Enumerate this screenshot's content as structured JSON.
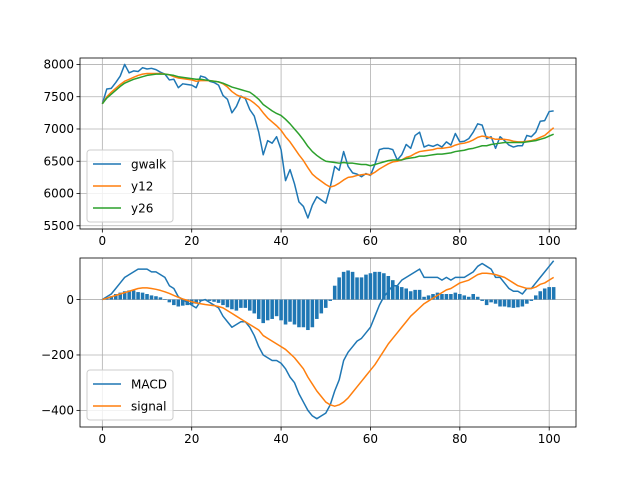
{
  "colors": {
    "blue": "#1f77b4",
    "orange": "#ff7f0e",
    "green": "#2ca02c",
    "grid": "#b0b0b0"
  },
  "chart_data": [
    {
      "type": "line",
      "title": "",
      "xlabel": "",
      "ylabel": "",
      "xlim": [
        -5,
        106
      ],
      "ylim": [
        5450,
        8100
      ],
      "xticks": [
        0,
        20,
        40,
        60,
        80,
        100
      ],
      "yticks": [
        5500,
        6000,
        6500,
        7000,
        7500,
        8000
      ],
      "grid": true,
      "legend_position": "lower-left",
      "x_start": 0,
      "series": [
        {
          "name": "gwalk",
          "color": "#1f77b4",
          "values": [
            7390,
            7620,
            7630,
            7720,
            7820,
            8000,
            7870,
            7900,
            7890,
            7950,
            7930,
            7940,
            7920,
            7880,
            7850,
            7760,
            7770,
            7640,
            7700,
            7690,
            7680,
            7640,
            7820,
            7800,
            7740,
            7720,
            7680,
            7520,
            7460,
            7250,
            7350,
            7510,
            7470,
            7300,
            7200,
            6950,
            6600,
            6820,
            6780,
            6880,
            6680,
            6200,
            6370,
            6150,
            5870,
            5800,
            5620,
            5820,
            5950,
            5900,
            5850,
            6100,
            6420,
            6360,
            6650,
            6420,
            6320,
            6300,
            6260,
            6310,
            6280,
            6450,
            6680,
            6700,
            6700,
            6680,
            6520,
            6600,
            6760,
            6700,
            6900,
            6950,
            6720,
            6750,
            6730,
            6760,
            6720,
            6800,
            6750,
            6930,
            6800,
            6810,
            6850,
            6950,
            7080,
            7060,
            6850,
            6880,
            6700,
            6880,
            6820,
            6750,
            6720,
            6740,
            6740,
            6900,
            6880,
            6950,
            7120,
            7130,
            7270,
            7280
          ]
        },
        {
          "name": "y12",
          "color": "#ff7f0e",
          "values": [
            7390,
            7500,
            7570,
            7630,
            7690,
            7740,
            7770,
            7800,
            7830,
            7850,
            7860,
            7860,
            7860,
            7860,
            7850,
            7840,
            7810,
            7790,
            7780,
            7770,
            7760,
            7740,
            7750,
            7750,
            7750,
            7740,
            7730,
            7700,
            7650,
            7580,
            7530,
            7500,
            7480,
            7450,
            7400,
            7340,
            7250,
            7170,
            7110,
            7050,
            6980,
            6880,
            6800,
            6700,
            6600,
            6510,
            6400,
            6300,
            6240,
            6190,
            6140,
            6100,
            6120,
            6160,
            6210,
            6250,
            6260,
            6280,
            6290,
            6300,
            6290,
            6330,
            6380,
            6420,
            6460,
            6490,
            6500,
            6520,
            6560,
            6580,
            6620,
            6650,
            6660,
            6670,
            6680,
            6700,
            6700,
            6710,
            6720,
            6750,
            6770,
            6780,
            6800,
            6830,
            6870,
            6890,
            6880,
            6860,
            6840,
            6840,
            6840,
            6830,
            6810,
            6800,
            6800,
            6810,
            6820,
            6840,
            6870,
            6900,
            6960,
            7020
          ]
        },
        {
          "name": "y26",
          "color": "#2ca02c",
          "values": [
            7390,
            7480,
            7540,
            7600,
            7660,
            7710,
            7740,
            7770,
            7790,
            7810,
            7830,
            7840,
            7850,
            7850,
            7850,
            7840,
            7830,
            7810,
            7800,
            7790,
            7780,
            7770,
            7770,
            7760,
            7750,
            7740,
            7730,
            7710,
            7680,
            7650,
            7630,
            7610,
            7590,
            7570,
            7520,
            7460,
            7380,
            7330,
            7280,
            7240,
            7210,
            7150,
            7080,
            7000,
            6920,
            6830,
            6730,
            6650,
            6590,
            6540,
            6500,
            6490,
            6480,
            6470,
            6480,
            6470,
            6470,
            6460,
            6450,
            6450,
            6430,
            6450,
            6470,
            6490,
            6510,
            6520,
            6520,
            6520,
            6540,
            6550,
            6560,
            6580,
            6580,
            6590,
            6600,
            6610,
            6610,
            6620,
            6630,
            6650,
            6660,
            6670,
            6690,
            6700,
            6720,
            6740,
            6740,
            6760,
            6770,
            6780,
            6790,
            6790,
            6790,
            6790,
            6790,
            6800,
            6810,
            6820,
            6840,
            6860,
            6890,
            6920
          ]
        }
      ]
    },
    {
      "type": "line+bar",
      "title": "",
      "xlabel": "",
      "ylabel": "",
      "xlim": [
        -5,
        106
      ],
      "ylim": [
        -460,
        150
      ],
      "xticks": [
        0,
        20,
        40,
        60,
        80,
        100
      ],
      "yticks": [
        -400,
        -200,
        0
      ],
      "grid": true,
      "legend_position": "lower-left",
      "x_start": 0,
      "bars": {
        "color": "#1f77b4",
        "values": [
          0,
          5,
          12,
          20,
          25,
          30,
          33,
          33,
          27,
          25,
          20,
          15,
          12,
          8,
          2,
          -10,
          -20,
          -25,
          -22,
          -20,
          -18,
          -15,
          -5,
          -3,
          -5,
          -8,
          -12,
          -20,
          -28,
          -35,
          -40,
          -30,
          -30,
          -40,
          -50,
          -70,
          -85,
          -75,
          -70,
          -60,
          -75,
          -90,
          -80,
          -90,
          -100,
          -100,
          -110,
          -100,
          -70,
          -50,
          -30,
          -5,
          50,
          80,
          100,
          105,
          100,
          80,
          80,
          90,
          95,
          100,
          100,
          95,
          85,
          70,
          50,
          45,
          40,
          30,
          35,
          35,
          10,
          15,
          20,
          25,
          20,
          20,
          20,
          25,
          20,
          15,
          10,
          20,
          10,
          -5,
          -20,
          -10,
          -15,
          -25,
          -25,
          -28,
          -30,
          -28,
          -25,
          -15,
          -5,
          15,
          30,
          40,
          45,
          45
        ]
      },
      "series": [
        {
          "name": "MACD",
          "color": "#1f77b4",
          "values": [
            0,
            10,
            20,
            40,
            60,
            80,
            90,
            100,
            110,
            110,
            110,
            100,
            100,
            90,
            80,
            50,
            40,
            10,
            0,
            -10,
            -20,
            -30,
            -5,
            0,
            -10,
            -20,
            -30,
            -60,
            -80,
            -100,
            -90,
            -80,
            -80,
            -100,
            -130,
            -170,
            -200,
            -210,
            -220,
            -220,
            -230,
            -250,
            -280,
            -300,
            -340,
            -370,
            -400,
            -420,
            -430,
            -420,
            -410,
            -380,
            -330,
            -290,
            -220,
            -190,
            -170,
            -150,
            -140,
            -120,
            -100,
            -60,
            -20,
            10,
            30,
            50,
            50,
            70,
            80,
            90,
            100,
            110,
            80,
            80,
            80,
            80,
            70,
            80,
            70,
            80,
            80,
            80,
            90,
            100,
            120,
            130,
            120,
            110,
            80,
            80,
            60,
            40,
            30,
            30,
            20,
            40,
            40,
            60,
            80,
            100,
            120,
            140
          ]
        },
        {
          "name": "signal",
          "color": "#ff7f0e",
          "values": [
            0,
            5,
            10,
            15,
            20,
            25,
            30,
            35,
            40,
            42,
            42,
            40,
            37,
            33,
            28,
            22,
            15,
            8,
            2,
            -3,
            -8,
            -12,
            -15,
            -18,
            -20,
            -22,
            -25,
            -30,
            -40,
            -50,
            -60,
            -70,
            -80,
            -90,
            -100,
            -110,
            -130,
            -140,
            -150,
            -160,
            -170,
            -180,
            -195,
            -210,
            -230,
            -250,
            -280,
            -305,
            -330,
            -350,
            -370,
            -380,
            -385,
            -380,
            -370,
            -355,
            -335,
            -315,
            -295,
            -275,
            -255,
            -235,
            -210,
            -185,
            -160,
            -140,
            -120,
            -100,
            -80,
            -60,
            -45,
            -30,
            -15,
            -5,
            5,
            15,
            25,
            35,
            40,
            50,
            60,
            65,
            70,
            80,
            90,
            95,
            95,
            93,
            90,
            85,
            80,
            70,
            60,
            50,
            45,
            40,
            40,
            45,
            55,
            60,
            70,
            80
          ]
        }
      ]
    }
  ]
}
